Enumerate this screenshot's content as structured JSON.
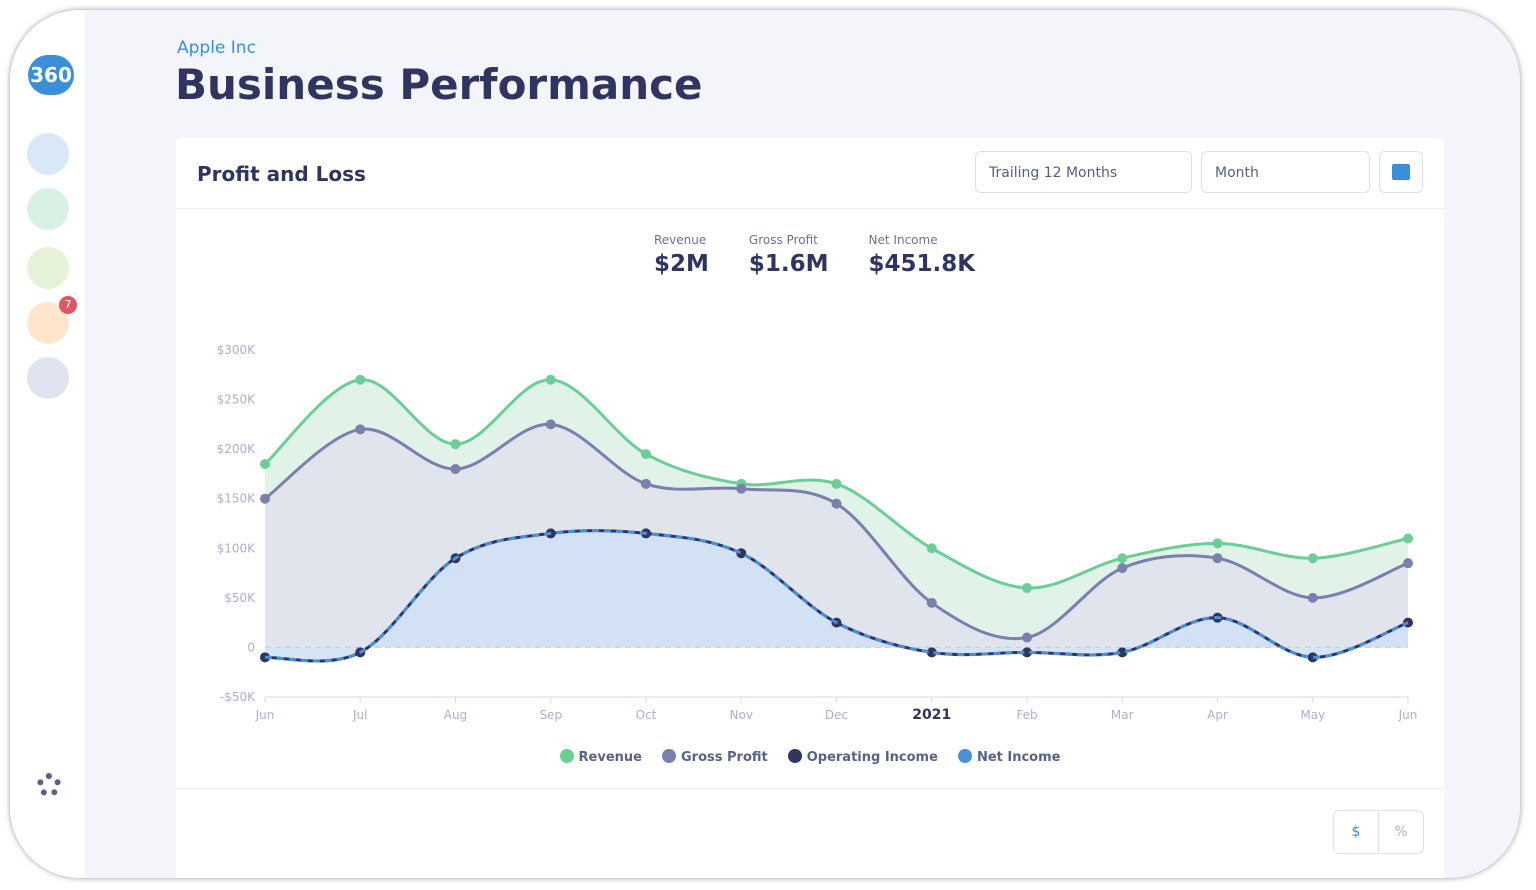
{
  "sidebar": {
    "logo": "360",
    "badge": "7"
  },
  "header": {
    "company": "Apple Inc",
    "title": "Business Performance"
  },
  "card": {
    "title": "Profit and Loss",
    "period": "Trailing 12 Months",
    "granularity": "Month"
  },
  "kpis": [
    {
      "label": "Revenue",
      "value": "$2M"
    },
    {
      "label": "Gross Profit",
      "value": "$1.6M"
    },
    {
      "label": "Net Income",
      "value": "$451.8K"
    }
  ],
  "toggle": [
    "$",
    "%"
  ],
  "chart_data": {
    "type": "area",
    "categories": [
      "Jun",
      "Jul",
      "Aug",
      "Sep",
      "Oct",
      "Nov",
      "Dec",
      "2021",
      "Feb",
      "Mar",
      "Apr",
      "May",
      "Jun"
    ],
    "ylim": [
      -50,
      300
    ],
    "yticks": [
      {
        "value": -50,
        "label": "-$50K"
      },
      0,
      {
        "value": 50,
        "label": "$50K"
      },
      {
        "value": 100,
        "label": "$100K"
      },
      {
        "value": 150,
        "label": "$150K"
      },
      {
        "value": 200,
        "label": "$200K"
      },
      {
        "value": 250,
        "label": "$250K"
      },
      {
        "value": 300,
        "label": "$300K"
      }
    ],
    "series": [
      {
        "name": "Revenue",
        "color": "#6cce96",
        "fill": "#dcf1e4",
        "values": [
          185,
          270,
          205,
          270,
          195,
          165,
          165,
          100,
          60,
          90,
          105,
          90,
          110
        ]
      },
      {
        "name": "Gross Profit",
        "color": "#7b7fae",
        "fill": "#dfe0ec",
        "values": [
          150,
          220,
          180,
          225,
          165,
          160,
          145,
          45,
          10,
          80,
          90,
          50,
          85
        ]
      },
      {
        "name": "Operating Income",
        "color": "#2f3560",
        "values": [
          -10,
          -5,
          90,
          115,
          115,
          95,
          25,
          -5,
          -5,
          -5,
          30,
          -10,
          25
        ]
      },
      {
        "name": "Net Income",
        "color": "#4a90d9",
        "fill": "#cfe1f4",
        "dashed": true,
        "values": [
          -10,
          -5,
          90,
          115,
          115,
          95,
          25,
          -5,
          -5,
          -5,
          30,
          -10,
          25
        ]
      }
    ]
  }
}
